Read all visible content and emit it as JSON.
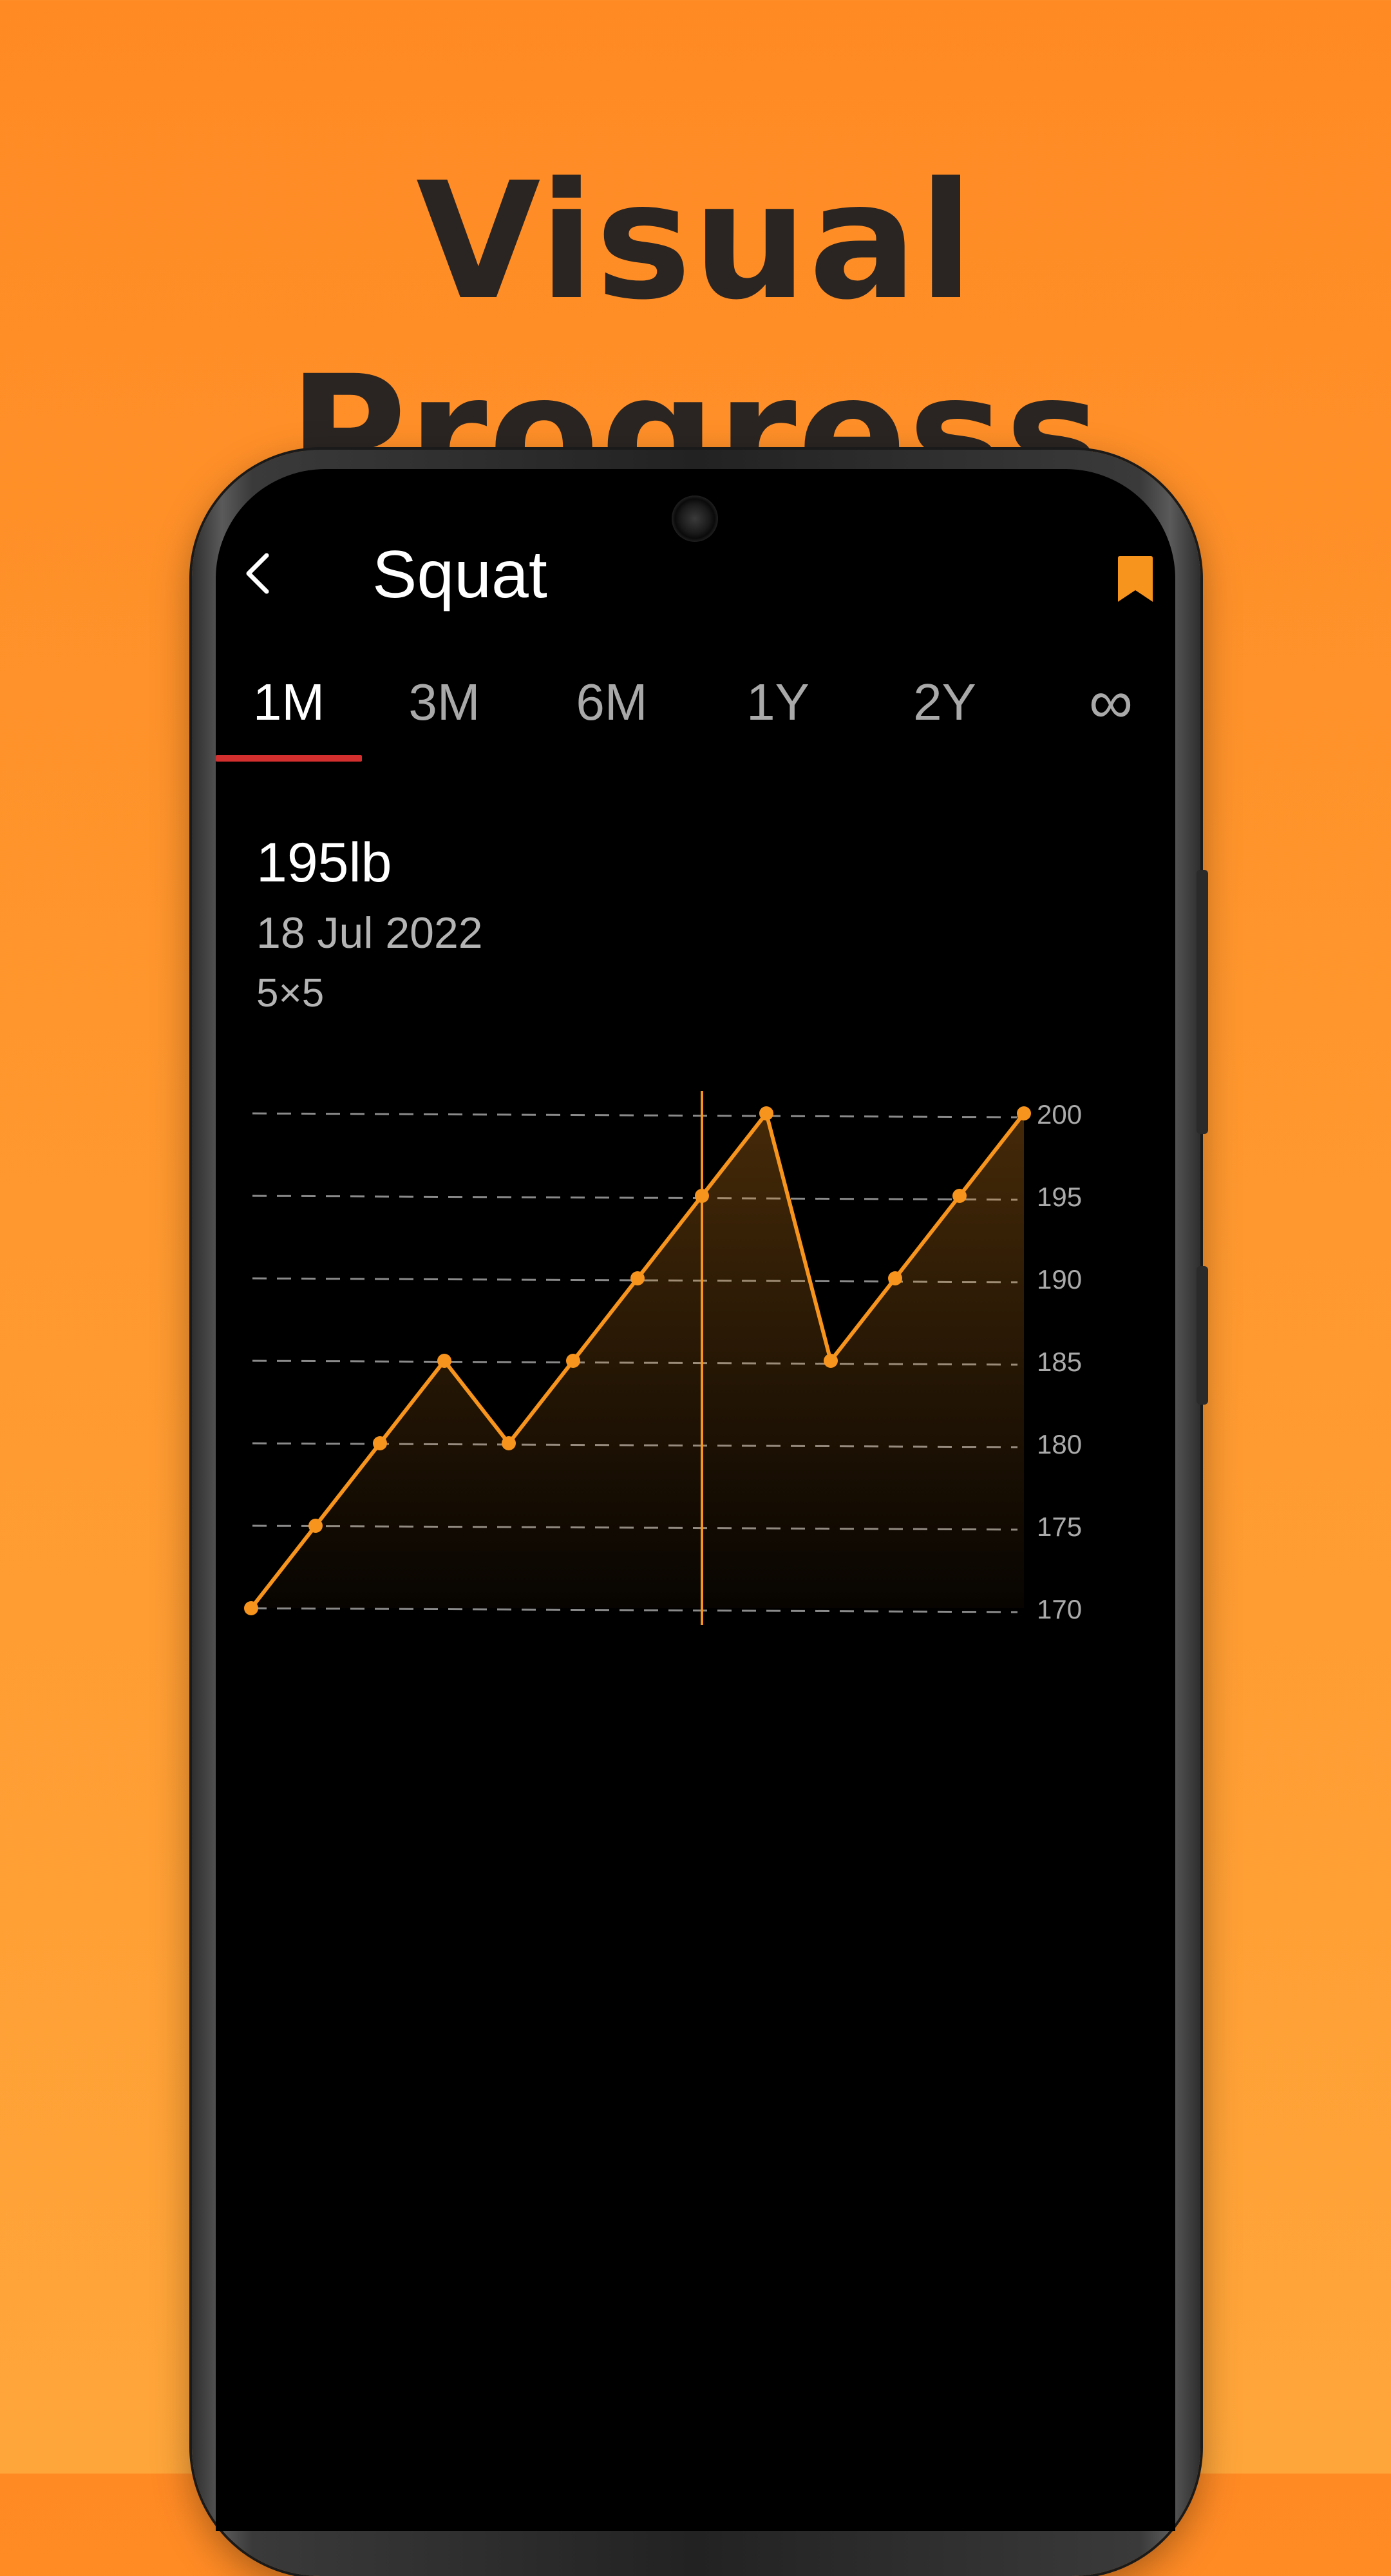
{
  "headline": "Visual Progress",
  "header": {
    "title": "Squat",
    "back_icon": "chevron-left-icon",
    "bookmark_icon": "bookmark-icon"
  },
  "tabs": [
    {
      "label": "1M",
      "active": true
    },
    {
      "label": "3M",
      "active": false
    },
    {
      "label": "6M",
      "active": false
    },
    {
      "label": "1Y",
      "active": false
    },
    {
      "label": "2Y",
      "active": false
    },
    {
      "label": "∞",
      "active": false
    }
  ],
  "selected_point": {
    "weight": "195lb",
    "date": "18 Jul 2022",
    "sets_reps": "5×5"
  },
  "colors": {
    "background": "#ff8a24",
    "accent": "#f7941d",
    "tab_indicator": "#d32f2f",
    "screen": "#000000"
  },
  "chart_data": {
    "type": "area",
    "title": "",
    "xlabel": "",
    "ylabel": "",
    "ylim": [
      170,
      200
    ],
    "y_ticks": [
      200,
      195,
      190,
      185,
      180,
      175,
      170
    ],
    "y_axis_position": "right",
    "grid": true,
    "series": [
      {
        "values": [
          170,
          175,
          180,
          185,
          180,
          185,
          190,
          195,
          200,
          185,
          190,
          195,
          200
        ]
      }
    ],
    "selected_index": 7
  }
}
